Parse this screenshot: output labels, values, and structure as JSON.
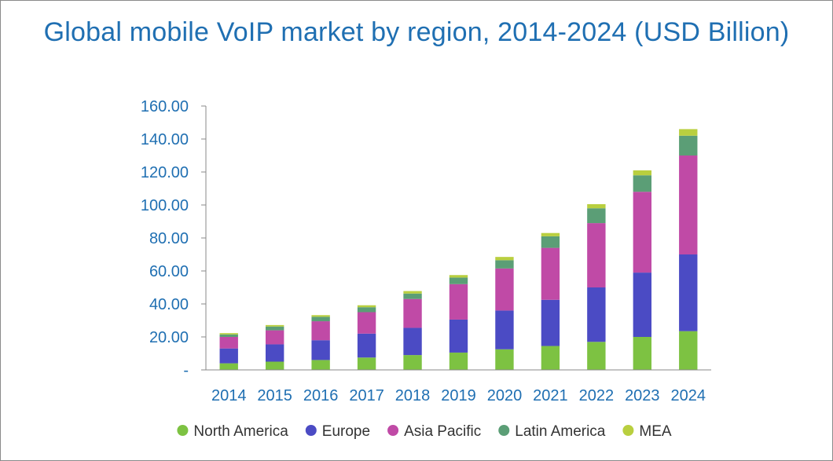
{
  "colors": {
    "title": "#1f6fb2",
    "axis_text": "#1f6fb2",
    "axis_line": "#888888",
    "frame": "#8a8a8a"
  },
  "chart_data": {
    "type": "bar",
    "stacked": true,
    "title": "Global mobile VoIP market by region, 2014-2024 (USD Billion)",
    "xlabel": "",
    "ylabel": "",
    "ylim": [
      0,
      160
    ],
    "yticks": [
      0,
      20,
      40,
      60,
      80,
      100,
      120,
      140,
      160
    ],
    "ytick_labels": [
      "-",
      "20.00",
      "40.00",
      "60.00",
      "80.00",
      "100.00",
      "120.00",
      "140.00",
      "160.00"
    ],
    "categories": [
      "2014",
      "2015",
      "2016",
      "2017",
      "2018",
      "2019",
      "2020",
      "2021",
      "2022",
      "2023",
      "2024"
    ],
    "legend_position": "bottom",
    "series": [
      {
        "name": "North America",
        "color": "#7dc242",
        "values": [
          4.0,
          5.0,
          6.0,
          7.5,
          9.0,
          10.5,
          12.5,
          14.5,
          17.0,
          20.0,
          23.5
        ]
      },
      {
        "name": "Europe",
        "color": "#4b4bc4",
        "values": [
          9.0,
          10.5,
          12.0,
          14.5,
          16.5,
          20.0,
          23.5,
          28.0,
          33.0,
          39.0,
          46.5
        ]
      },
      {
        "name": "Asia Pacific",
        "color": "#c04aa6",
        "values": [
          7.0,
          8.5,
          11.5,
          13.0,
          17.5,
          21.5,
          25.5,
          31.5,
          39.0,
          49.0,
          60.0
        ]
      },
      {
        "name": "Latin America",
        "color": "#5b9e76",
        "values": [
          1.5,
          2.3,
          2.7,
          3.0,
          3.3,
          4.0,
          5.0,
          7.0,
          9.0,
          10.0,
          12.0
        ]
      },
      {
        "name": "MEA",
        "color": "#b9cf3f",
        "values": [
          0.8,
          0.9,
          1.0,
          1.2,
          1.5,
          1.5,
          2.0,
          2.0,
          2.5,
          3.0,
          4.0
        ]
      }
    ]
  }
}
